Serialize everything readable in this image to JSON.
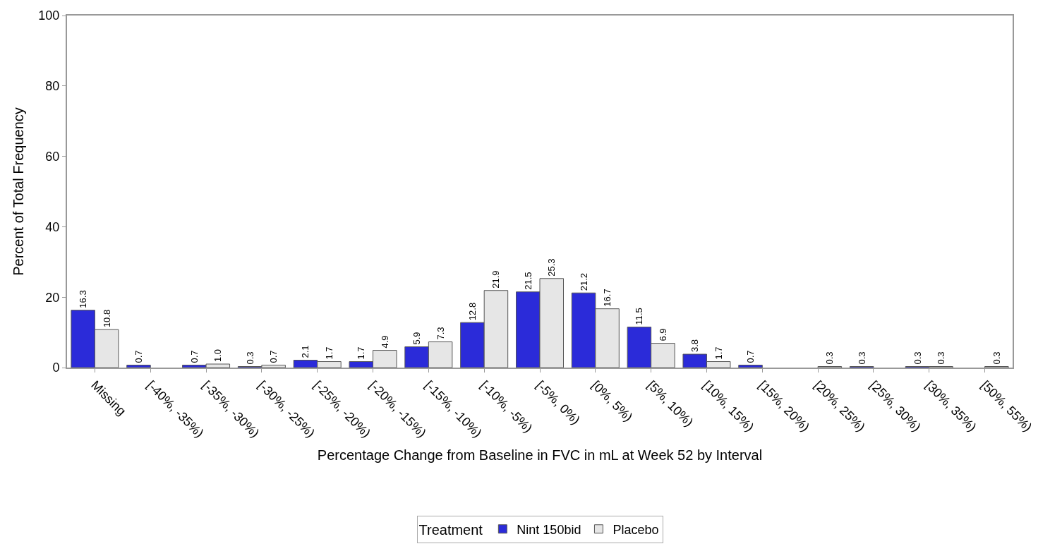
{
  "chart_data": {
    "type": "bar",
    "xlabel": "Percentage Change from Baseline in FVC in mL at Week 52 by Interval",
    "ylabel": "Percent of Total Frequency",
    "categories": [
      "Missing",
      "[-40%, -35%)",
      "[-35%, -30%)",
      "[-30%, -25%)",
      "[-25%, -20%)",
      "[-20%, -15%)",
      "[-15%, -10%)",
      "[-10%, -5%)",
      "[-5%, 0%)",
      "[0%, 5%)",
      "[5%, 10%)",
      "[10%, 15%)",
      "[15%, 20%)",
      "[20%, 25%)",
      "[25%, 30%)",
      "[30%, 35%)",
      "[50%, 55%)"
    ],
    "series": [
      {
        "name": "Nint 150bid",
        "color": "#2b2bd9",
        "values": [
          16.3,
          0.7,
          0.7,
          0.3,
          2.1,
          1.7,
          5.9,
          12.8,
          21.5,
          21.2,
          11.5,
          3.8,
          0.7,
          null,
          0.3,
          0.3,
          null
        ],
        "value_labels": [
          "16.3",
          "0.7",
          "0.7",
          "0.3",
          "2.1",
          "1.7",
          "5.9",
          "12.8",
          "21.5",
          "21.2",
          "11.5",
          "3.8",
          "0.7",
          null,
          "0.3",
          "0.3",
          null
        ]
      },
      {
        "name": "Placebo",
        "color": "#e6e6e6",
        "values": [
          10.8,
          null,
          1.0,
          0.7,
          1.7,
          4.9,
          7.3,
          21.9,
          25.3,
          16.7,
          6.9,
          1.7,
          null,
          0.3,
          null,
          0.3,
          0.3
        ],
        "value_labels": [
          "10.8",
          null,
          "1.0",
          "0.7",
          "1.7",
          "4.9",
          "7.3",
          "21.9",
          "25.3",
          "16.7",
          "6.9",
          "1.7",
          null,
          "0.3",
          null,
          "0.3",
          "0.3"
        ]
      }
    ],
    "legend_title": "Treatment",
    "legend": "bottom",
    "ylim": [
      0,
      100
    ],
    "yticks": [
      0,
      20,
      40,
      60,
      80,
      100
    ]
  }
}
